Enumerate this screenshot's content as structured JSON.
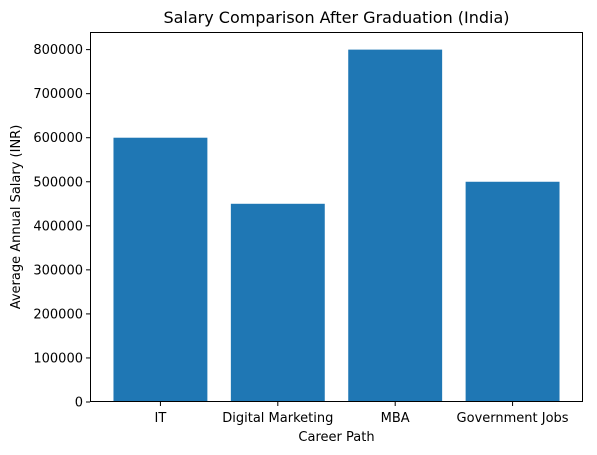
{
  "chart_data": {
    "type": "bar",
    "title": "Salary Comparison After Graduation (India)",
    "xlabel": "Career Path",
    "ylabel": "Average Annual Salary (INR)",
    "categories": [
      "IT",
      "Digital Marketing",
      "MBA",
      "Government Jobs"
    ],
    "values": [
      600000,
      450000,
      800000,
      500000
    ],
    "ylim": [
      0,
      840000
    ],
    "yticks": [
      0,
      100000,
      200000,
      300000,
      400000,
      500000,
      600000,
      700000,
      800000
    ],
    "ytick_labels": [
      "0",
      "100000",
      "200000",
      "300000",
      "400000",
      "500000",
      "600000",
      "700000",
      "800000"
    ],
    "bar_color": "#1f77b4",
    "grid": false,
    "legend": "none"
  }
}
